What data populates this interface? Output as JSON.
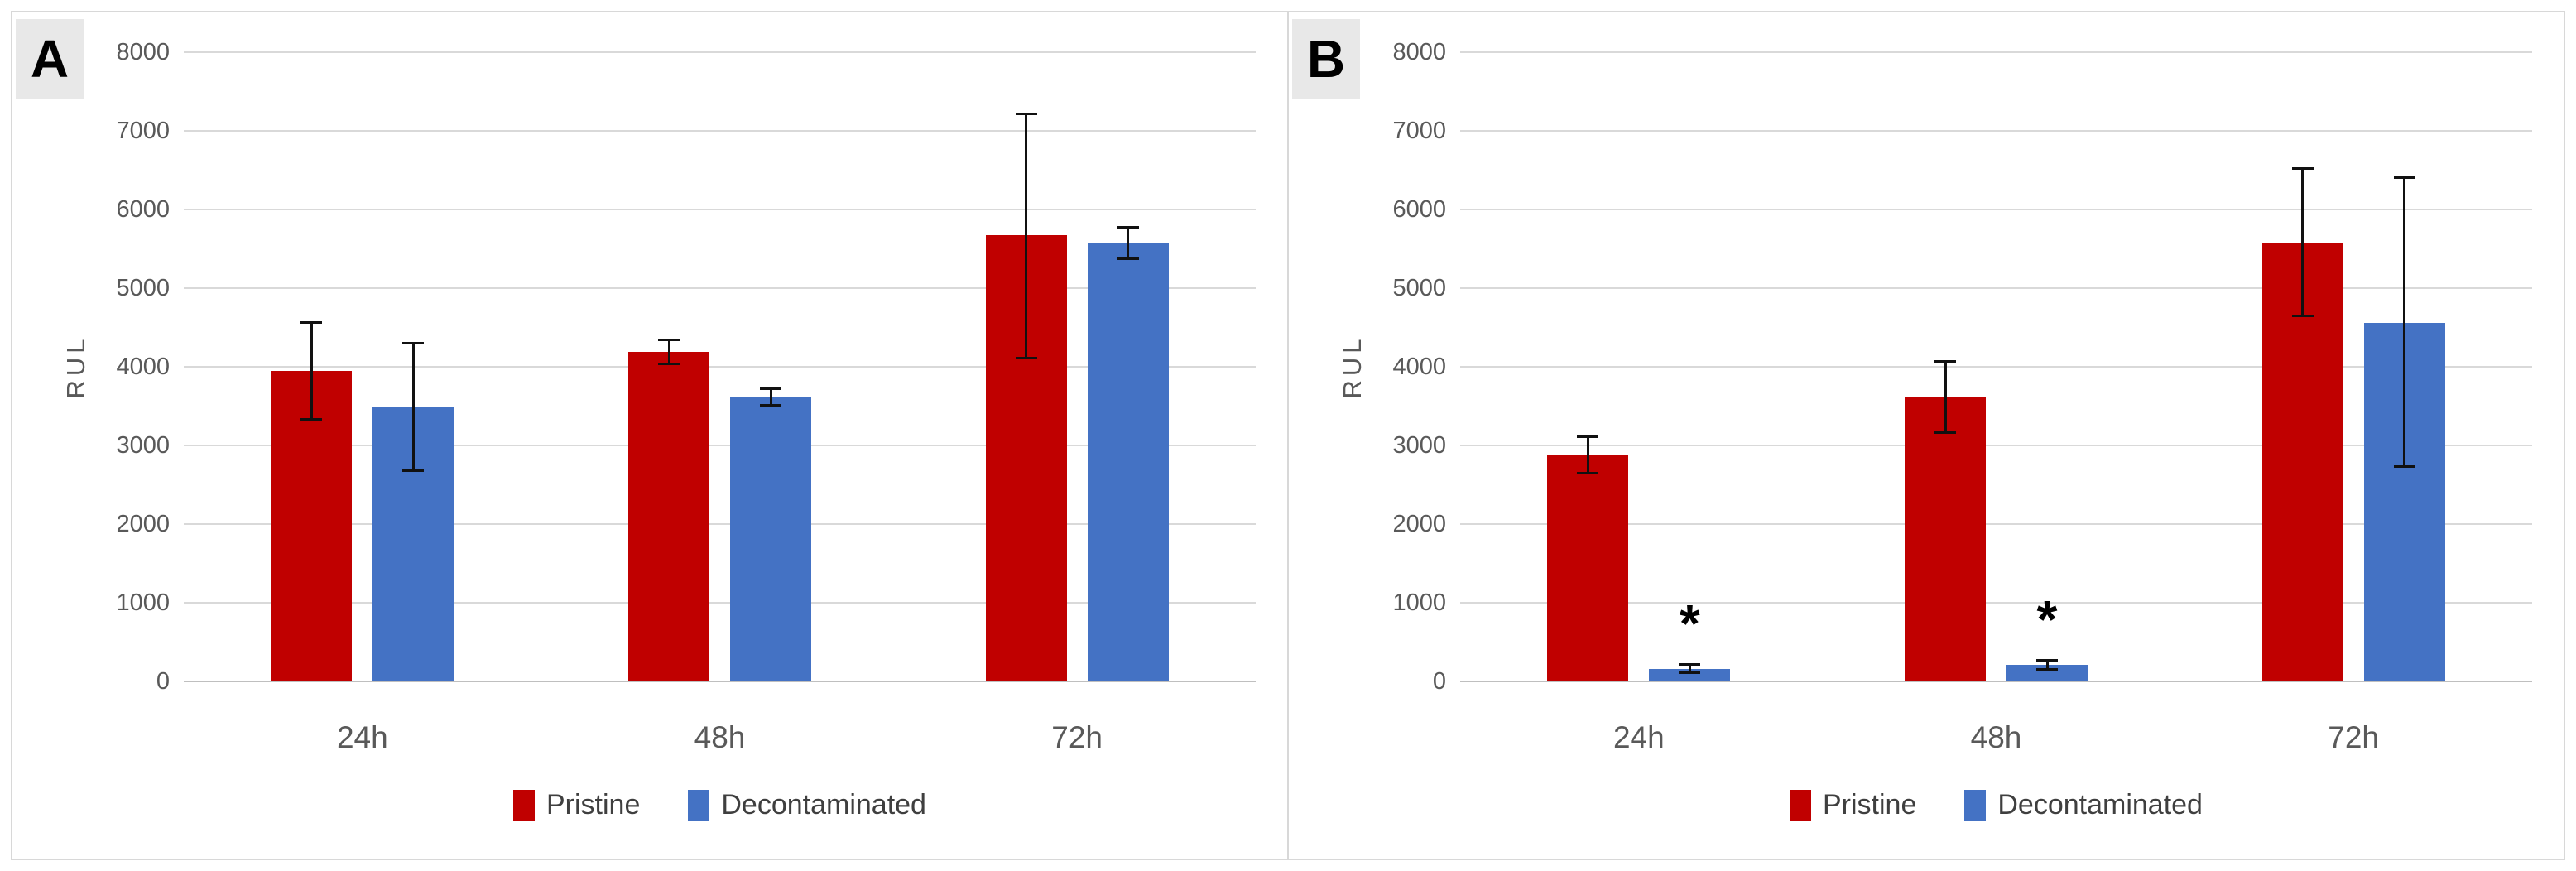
{
  "figure_title": "RUL bar charts, panels A and B",
  "axis": {
    "ymin": 0,
    "ymax": 8000,
    "step": 1000,
    "tick_labels": [
      "8000",
      "7000",
      "6000",
      "5000",
      "4000",
      "3000",
      "2000",
      "1000",
      "0"
    ],
    "grid": true
  },
  "legend": {
    "items": [
      {
        "label": "Pristine",
        "color": "#C00000"
      },
      {
        "label": "Decontaminated",
        "color": "#4472C4"
      }
    ]
  },
  "style": {
    "gridline_color": "#d9d9d9",
    "baseline_color": "#bfbfbf",
    "tick_text_color": "#595959",
    "legend_text_color": "#3f3f3f",
    "error_bar_color": "#111111",
    "panel_label_bg": "#e8e8e8",
    "pristine_color": "#C00000",
    "decontaminated_color": "#4472C4"
  },
  "chart_data": [
    {
      "type": "bar",
      "panel_label": "A",
      "ylabel": "RUL",
      "ylim": [
        0,
        8000
      ],
      "categories": [
        "24h",
        "48h",
        "72h"
      ],
      "series": [
        {
          "name": "Pristine",
          "color": "#C00000",
          "values": [
            3950,
            4190,
            5670
          ],
          "err_low": [
            3320,
            4020,
            4100
          ],
          "err_high": [
            4580,
            4360,
            7230
          ]
        },
        {
          "name": "Decontaminated",
          "color": "#4472C4",
          "values": [
            3480,
            3620,
            5570
          ],
          "err_low": [
            2660,
            3500,
            5360
          ],
          "err_high": [
            4320,
            3740,
            5790
          ]
        }
      ],
      "significance": []
    },
    {
      "type": "bar",
      "panel_label": "B",
      "ylabel": "RUL",
      "ylim": [
        0,
        8000
      ],
      "categories": [
        "24h",
        "48h",
        "72h"
      ],
      "series": [
        {
          "name": "Pristine",
          "color": "#C00000",
          "values": [
            2870,
            3620,
            5570
          ],
          "err_low": [
            2630,
            3150,
            4630
          ],
          "err_high": [
            3130,
            4080,
            6540
          ]
        },
        {
          "name": "Decontaminated",
          "color": "#4472C4",
          "values": [
            160,
            210,
            4560
          ],
          "err_low": [
            100,
            140,
            2720
          ],
          "err_high": [
            230,
            285,
            6420
          ]
        }
      ],
      "significance": [
        {
          "series": "Decontaminated",
          "category": "24h",
          "symbol": "*"
        },
        {
          "series": "Decontaminated",
          "category": "48h",
          "symbol": "*"
        }
      ]
    }
  ]
}
